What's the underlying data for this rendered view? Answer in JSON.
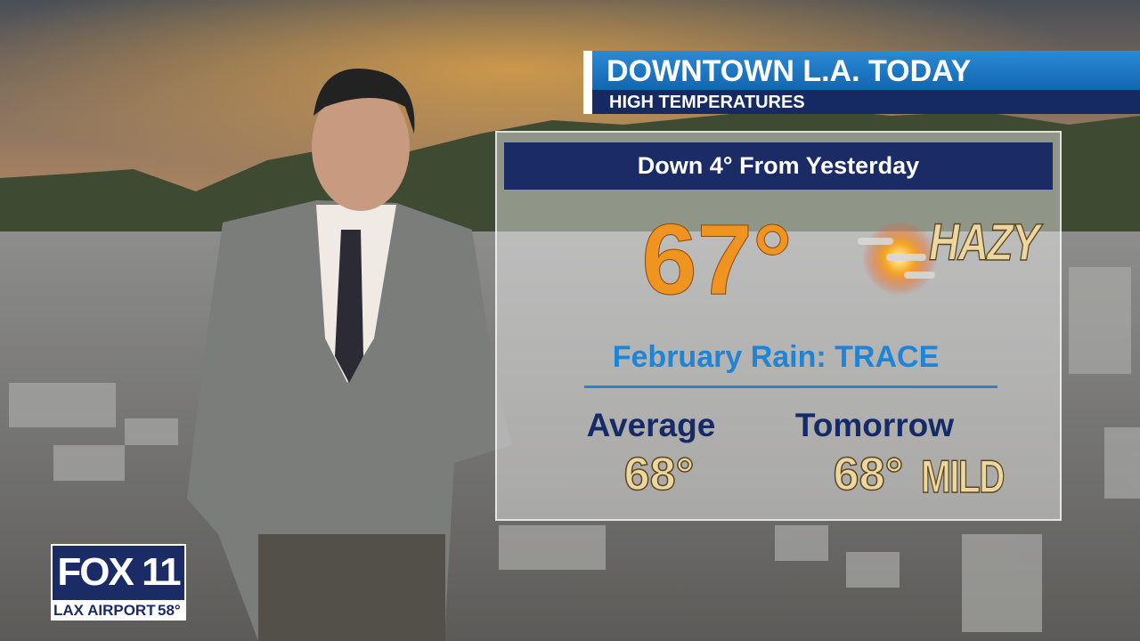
{
  "header": {
    "title": "DOWNTOWN L.A. TODAY",
    "subtitle": "HIGH TEMPERATURES"
  },
  "panel": {
    "banner": "Down 4° From Yesterday",
    "high": "67°",
    "condition": "HAZY",
    "rain": "February Rain: TRACE",
    "average": {
      "label": "Average",
      "value": "68°"
    },
    "tomorrow": {
      "label": "Tomorrow",
      "value": "68°",
      "condition": "MILD"
    }
  },
  "logo": {
    "brand": "FOX 11",
    "station": "LAX AIRPORT",
    "temperature": "58°"
  }
}
